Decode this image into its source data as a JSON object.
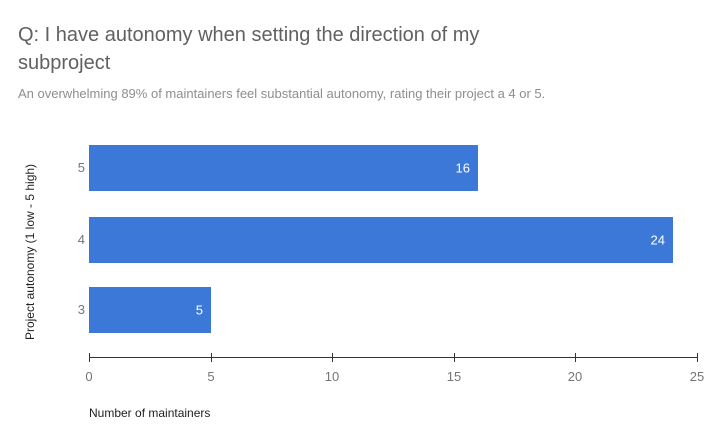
{
  "title_lines": [
    "Q: I have autonomy when setting the direction of my",
    "subproject"
  ],
  "chart_data": {
    "type": "bar",
    "orientation": "horizontal",
    "title": "Q: I have autonomy when setting the direction of my subproject",
    "subtitle": "An overwhelming 89% of maintainers feel substantial autonomy, rating their project a 4 or 5.",
    "categories": [
      "5",
      "4",
      "3"
    ],
    "values": [
      16,
      24,
      5
    ],
    "xlabel": "Number of maintainers",
    "ylabel": "Project autonomy (1 low - 5 high)",
    "xlim": [
      0,
      25
    ],
    "xticks": [
      0,
      5,
      10,
      15,
      20,
      25
    ],
    "grid": false,
    "legend": "none",
    "value_labels_inside_bars": true,
    "colors": {
      "bar": "#3c78d8",
      "value_label": "#ffffff",
      "title": "#616161",
      "subtitle": "#8e8e8e",
      "axis_title": "#212121",
      "axis": "#333333",
      "tick_label": "#757575",
      "category_label": "#757575",
      "background": "#ffffff"
    }
  }
}
